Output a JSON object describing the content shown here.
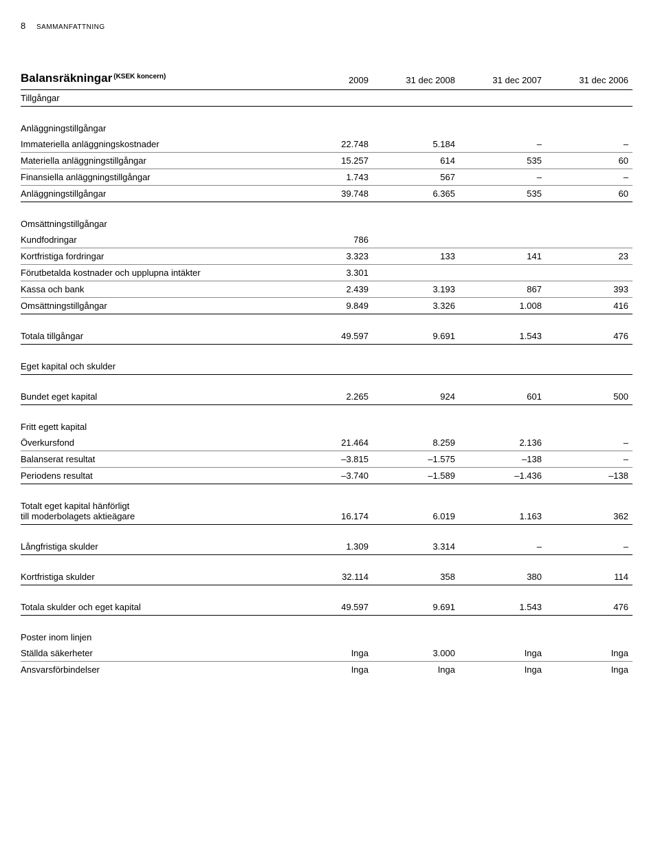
{
  "page_number": "8",
  "header_small": "SAMMANFATTNING",
  "title": "Balansräkningar",
  "title_super": "(KSEK koncern)",
  "columns": [
    "2009",
    "31 dec 2008",
    "31 dec 2007",
    "31 dec 2006"
  ],
  "rows": {
    "tillgangar": "Tillgångar",
    "anlaggningstillgangar": "Anläggningstillgångar",
    "immateriella": {
      "label": "Immateriella anläggningskostnader",
      "v": [
        "22.748",
        "5.184",
        "–",
        "–"
      ]
    },
    "materiella": {
      "label": "Materiella anläggningstillgångar",
      "v": [
        "15.257",
        "614",
        "535",
        "60"
      ]
    },
    "finansiella": {
      "label": "Finansiella anläggningstillgångar",
      "v": [
        "1.743",
        "567",
        "–",
        "–"
      ]
    },
    "anlagg_sum": {
      "label": "Anläggningstillgångar",
      "v": [
        "39.748",
        "6.365",
        "535",
        "60"
      ]
    },
    "omsattningstillgangar": "Omsättningstillgångar",
    "kundfodringar": {
      "label": "Kundfodringar",
      "v": [
        "786",
        "",
        "",
        ""
      ]
    },
    "kortfristiga_fordr": {
      "label": "Kortfristiga fordringar",
      "v": [
        "3.323",
        "133",
        "141",
        "23"
      ]
    },
    "forutbetalda": {
      "label": "Förutbetalda kostnader och upplupna intäkter",
      "v": [
        "3.301",
        "",
        "",
        ""
      ]
    },
    "kassa": {
      "label": "Kassa och bank",
      "v": [
        "2.439",
        "3.193",
        "867",
        "393"
      ]
    },
    "omsattnings_sum": {
      "label": "Omsättningstillgångar",
      "v": [
        "9.849",
        "3.326",
        "1.008",
        "416"
      ]
    },
    "totala_tillgangar": {
      "label": "Totala tillgångar",
      "v": [
        "49.597",
        "9.691",
        "1.543",
        "476"
      ]
    },
    "eget_kapital_head": "Eget kapital och skulder",
    "bundet_eget": {
      "label": "Bundet eget kapital",
      "v": [
        "2.265",
        "924",
        "601",
        "500"
      ]
    },
    "fritt_egett": "Fritt egett kapital",
    "overkursfond": {
      "label": "Överkursfond",
      "v": [
        "21.464",
        "8.259",
        "2.136",
        "–"
      ]
    },
    "balanserat": {
      "label": "Balanserat resultat",
      "v": [
        "–3.815",
        "–1.575",
        "–138",
        "–"
      ]
    },
    "periodens": {
      "label": "Periodens resultat",
      "v": [
        "–3.740",
        "–1.589",
        "–1.436",
        "–138"
      ]
    },
    "totalt_eget_l1": "Totalt eget kapital hänförligt",
    "totalt_eget_l2": "till moderbolagets aktieägare",
    "totalt_eget_v": [
      "16.174",
      "6.019",
      "1.163",
      "362"
    ],
    "langfristiga": {
      "label": "Långfristiga skulder",
      "v": [
        "1.309",
        "3.314",
        "–",
        "–"
      ]
    },
    "kortfristiga": {
      "label": "Kortfristiga skulder",
      "v": [
        "32.114",
        "358",
        "380",
        "114"
      ]
    },
    "totala_skulder": {
      "label": "Totala skulder och eget kapital",
      "v": [
        "49.597",
        "9.691",
        "1.543",
        "476"
      ]
    },
    "poster_inom": "Poster inom linjen",
    "stallda": {
      "label": "Ställda säkerheter",
      "v": [
        "Inga",
        "3.000",
        "Inga",
        "Inga"
      ]
    },
    "ansvars": {
      "label": "Ansvarsförbindelser",
      "v": [
        "Inga",
        "Inga",
        "Inga",
        "Inga"
      ]
    }
  }
}
